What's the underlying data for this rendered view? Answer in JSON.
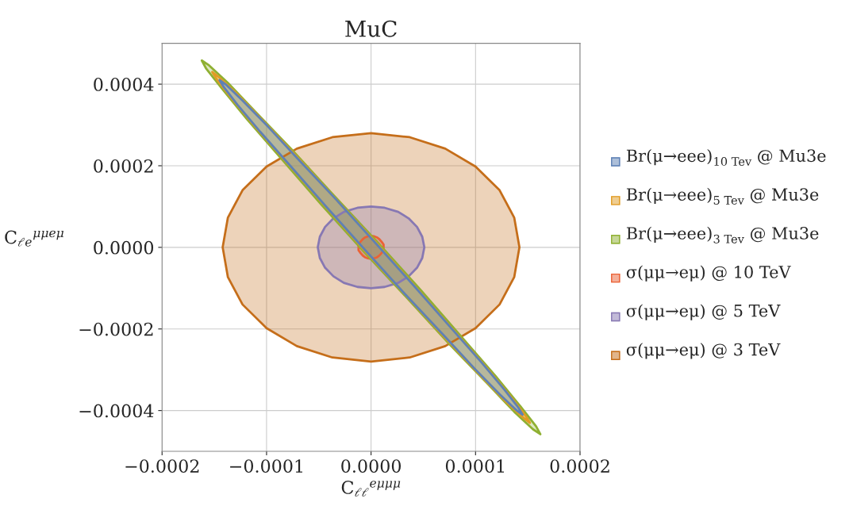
{
  "chart_data": {
    "type": "area",
    "title": "MuC",
    "xlabel": "C$_{ℓℓ}$$^{eμμμ}$",
    "ylabel": "C$_{ℓe}$$^{μμeμ}$",
    "xlim": [
      -0.0002,
      0.0002
    ],
    "ylim": [
      -0.0005,
      0.0005
    ],
    "xticks": [
      {
        "value": -0.0002,
        "label": "−0.0002"
      },
      {
        "value": -0.0001,
        "label": "−0.0001"
      },
      {
        "value": 0,
        "label": "0.0000"
      },
      {
        "value": 0.0001,
        "label": "0.0001"
      },
      {
        "value": 0.0002,
        "label": "0.0002"
      }
    ],
    "yticks": [
      {
        "value": -0.0004,
        "label": "−0.0004"
      },
      {
        "value": -0.0002,
        "label": "−0.0002"
      },
      {
        "value": 0,
        "label": "0.0000"
      },
      {
        "value": 0.0002,
        "label": "0.0002"
      },
      {
        "value": 0.0004,
        "label": "0.0004"
      }
    ],
    "grid": true,
    "legend": "right",
    "series": [
      {
        "name": "Br(μ→eee)$_{10 Tev}$ @ Mu3e",
        "color": "#5e81b5",
        "x": [
          0.000145,
          0.000141,
          0.000128,
          0.000106,
          7.6e-05,
          4.2e-05,
          4.5e-06,
          -3.3e-05,
          -6.9e-05,
          -9.9e-05,
          -0.000123,
          -0.000139,
          -0.000145,
          -0.000141,
          -0.000128,
          -0.000106,
          -7.6e-05,
          -4.2e-05,
          -4.5e-06,
          3.3e-05,
          6.9e-05,
          9.9e-05,
          0.000123,
          0.000139,
          0.000145
        ],
        "values": [
          -0.00041,
          -0.000393,
          -0.00035,
          -0.000283,
          -0.000196,
          -9.7e-05,
          1e-05,
          0.000116,
          0.000214,
          0.000297,
          0.00036,
          0.000399,
          0.00041,
          0.000393,
          0.00035,
          0.000283,
          0.000196,
          9.7e-05,
          -1e-05,
          -0.000116,
          -0.000214,
          -0.000297,
          -0.00036,
          -0.000399,
          -0.00041
        ]
      },
      {
        "name": "Br(μ→eee)$_{5 Tev}$ @ Mu3e",
        "color": "#e19c24",
        "x": [
          0.000152,
          0.000148,
          0.000134,
          0.000111,
          8e-05,
          4.4e-05,
          5e-06,
          -3.5e-05,
          -7.2e-05,
          -0.000104,
          -0.000129,
          -0.000146,
          -0.000152,
          -0.000148,
          -0.000134,
          -0.000111,
          -8e-05,
          -4.4e-05,
          -5e-06,
          3.5e-05,
          7.2e-05,
          0.000104,
          0.000129,
          0.000146,
          0.000152
        ],
        "values": [
          -0.00043,
          -0.000413,
          -0.000367,
          -0.000296,
          -0.000206,
          -0.000101,
          1.1e-05,
          0.000122,
          0.000225,
          0.000312,
          0.000378,
          0.000418,
          0.00043,
          0.000413,
          0.000367,
          0.000296,
          0.000206,
          0.000101,
          -1.1e-05,
          -0.000122,
          -0.000225,
          -0.000312,
          -0.000378,
          -0.000418,
          -0.00043
        ]
      },
      {
        "name": "Br(μ→eee)$_{3 Tev}$ @ Mu3e",
        "color": "#8fb032",
        "x": [
          0.000162,
          0.000158,
          0.000143,
          0.000119,
          8.6e-05,
          4.8e-05,
          6e-06,
          -3.7e-05,
          -7.6e-05,
          -0.000111,
          -0.000137,
          -0.000155,
          -0.000162,
          -0.000158,
          -0.000143,
          -0.000119,
          -8.6e-05,
          -4.8e-05,
          -6e-06,
          3.7e-05,
          7.6e-05,
          0.000111,
          0.000137,
          0.000155,
          0.000162
        ],
        "values": [
          -0.000458,
          -0.000439,
          -0.00039,
          -0.000315,
          -0.000218,
          -0.000106,
          1.3e-05,
          0.000131,
          0.00024,
          0.000333,
          0.000403,
          0.000446,
          0.000458,
          0.000439,
          0.00039,
          0.000315,
          0.000218,
          0.000106,
          -1.3e-05,
          -0.000131,
          -0.00024,
          -0.000333,
          -0.000403,
          -0.000446,
          -0.000458
        ]
      },
      {
        "name": "σ(μμ→eμ) @ 10 TeV",
        "color": "#eb6235",
        "x": [
          1.2e-05,
          1.2e-05,
          1e-05,
          8e-06,
          6e-06,
          3e-06,
          0,
          -3e-06,
          -6e-06,
          -8e-06,
          -1e-05,
          -1.2e-05,
          -1.2e-05,
          -1.2e-05,
          -1e-05,
          -8e-06,
          -6e-06,
          -3e-06,
          0,
          3e-06,
          6e-06,
          8e-06,
          1e-05,
          1.2e-05,
          1.2e-05
        ],
        "values": [
          0,
          7e-06,
          1.4e-05,
          2e-05,
          2.4e-05,
          2.7e-05,
          2.8e-05,
          2.7e-05,
          2.4e-05,
          2e-05,
          1.4e-05,
          7e-06,
          0,
          -7e-06,
          -1.4e-05,
          -2e-05,
          -2.4e-05,
          -2.7e-05,
          -2.8e-05,
          -2.7e-05,
          -2.4e-05,
          -2e-05,
          -1.4e-05,
          -7e-06,
          0
        ]
      },
      {
        "name": "σ(μμ→eμ) @ 5 TeV",
        "color": "#8778b3",
        "x": [
          5.1e-05,
          4.9e-05,
          4.4e-05,
          3.6e-05,
          2.6e-05,
          1.3e-05,
          0,
          -1.3e-05,
          -2.6e-05,
          -3.6e-05,
          -4.4e-05,
          -4.9e-05,
          -5.1e-05,
          -4.9e-05,
          -4.4e-05,
          -3.6e-05,
          -2.6e-05,
          -1.3e-05,
          0,
          1.3e-05,
          2.6e-05,
          3.6e-05,
          4.4e-05,
          4.9e-05,
          5.1e-05
        ],
        "values": [
          0,
          2.6e-05,
          5e-05,
          7.1e-05,
          8.7e-05,
          9.7e-05,
          0.0001,
          9.7e-05,
          8.7e-05,
          7.1e-05,
          5e-05,
          2.6e-05,
          0,
          -2.6e-05,
          -5e-05,
          -7.1e-05,
          -8.7e-05,
          -9.7e-05,
          -0.0001,
          -9.7e-05,
          -8.7e-05,
          -7.1e-05,
          -5e-05,
          -2.6e-05,
          0
        ]
      },
      {
        "name": "σ(μμ→eμ) @ 3 TeV",
        "color": "#c56e1a",
        "x": [
          0.000142,
          0.000137,
          0.000123,
          0.0001,
          7.1e-05,
          3.7e-05,
          0,
          -3.7e-05,
          -7.1e-05,
          -0.0001,
          -0.000123,
          -0.000137,
          -0.000142,
          -0.000137,
          -0.000123,
          -0.0001,
          -7.1e-05,
          -3.7e-05,
          0,
          3.7e-05,
          7.1e-05,
          0.0001,
          0.000123,
          0.000137,
          0.000142
        ],
        "values": [
          0,
          7.3e-05,
          0.00014,
          0.000198,
          0.000242,
          0.00027,
          0.00028,
          0.00027,
          0.000242,
          0.000198,
          0.00014,
          7.3e-05,
          0,
          -7.3e-05,
          -0.00014,
          -0.000198,
          -0.000242,
          -0.00027,
          -0.00028,
          -0.00027,
          -0.000242,
          -0.000198,
          -0.00014,
          -7.3e-05,
          0
        ]
      }
    ]
  }
}
